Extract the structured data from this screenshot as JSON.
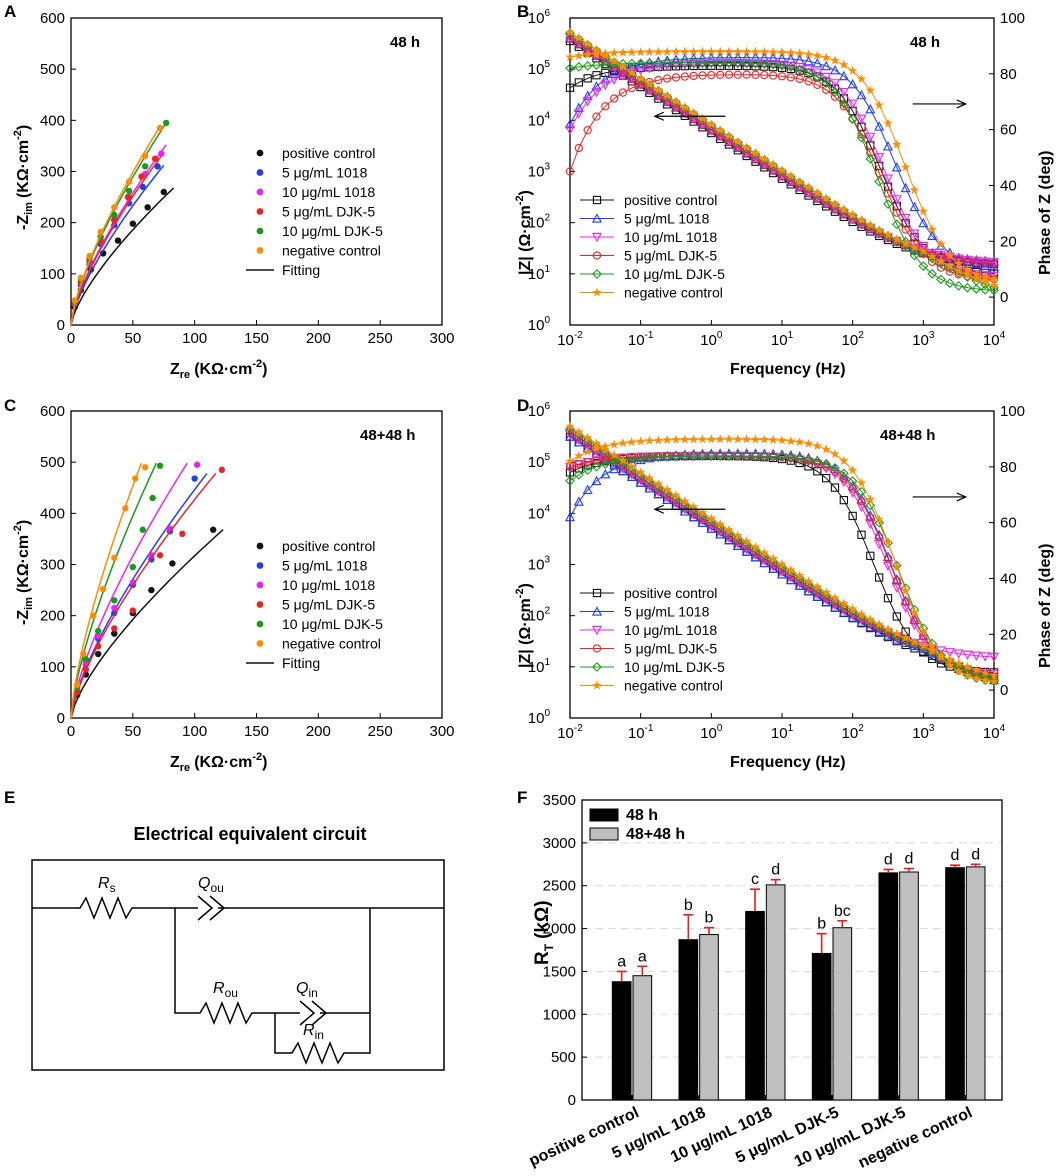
{
  "panels": {
    "A": "A",
    "B": "B",
    "C": "C",
    "D": "D",
    "E": "E",
    "F": "F"
  },
  "colors": {
    "positive_control": "#111111",
    "ug5_1018": "#1f3cff",
    "ug10_1018": "#ee22ee",
    "ug5_djk5": "#ee2222",
    "ug10_djk5": "#1a9a1a",
    "negative_control": "#ff8c00",
    "fitting": "#111111",
    "bar_48h": "#000000",
    "bar_4848h": "#bfbfbf",
    "error": "#e32020"
  },
  "chart_data": [
    {
      "id": "A",
      "type": "scatter",
      "annotation": "48 h",
      "xlabel_main": "Z",
      "xlabel_sub": "re",
      "xlabel_unit": "(KΩ·cm",
      "ylabel_main": "-Z",
      "ylabel_sub": "im",
      "ylabel_unit": "(KΩ·cm",
      "unit_exp": "-2",
      "unit_close": ")",
      "xlim": [
        0,
        300
      ],
      "ylim": [
        0,
        600
      ],
      "xticks": [
        "0",
        "50",
        "100",
        "150",
        "200",
        "250",
        "300"
      ],
      "yticks": [
        "0",
        "100",
        "200",
        "300",
        "400",
        "500",
        "600"
      ],
      "legend": [
        "positive control",
        "5 μg/mL 1018",
        "10 μg/mL 1018",
        "5 μg/mL DJK-5",
        "10 μg/mL DJK-5",
        "negative control",
        "Fitting"
      ],
      "series": [
        {
          "name": "positive control",
          "color": "positive_control",
          "x": [
            3,
            8,
            16,
            26,
            38,
            50,
            62,
            75
          ],
          "y": [
            35,
            68,
            108,
            140,
            165,
            198,
            230,
            260
          ],
          "fit_end": [
            83,
            268
          ]
        },
        {
          "name": "5 μg/mL 1018",
          "color": "ug5_1018",
          "x": [
            3,
            8,
            15,
            24,
            35,
            47,
            58,
            70
          ],
          "y": [
            40,
            78,
            118,
            158,
            195,
            238,
            270,
            310
          ],
          "fit_end": [
            75,
            312
          ]
        },
        {
          "name": "10 μg/mL 1018",
          "color": "ug10_1018",
          "x": [
            3,
            8,
            15,
            24,
            35,
            47,
            60,
            73
          ],
          "y": [
            42,
            82,
            122,
            165,
            205,
            250,
            295,
            335
          ],
          "fit_end": [
            77,
            352
          ]
        },
        {
          "name": "5 μg/mL DJK-5",
          "color": "ug5_djk5",
          "x": [
            3,
            8,
            15,
            24,
            35,
            46,
            57,
            68
          ],
          "y": [
            42,
            83,
            125,
            165,
            205,
            250,
            290,
            325
          ],
          "fit_end": [
            73,
            330
          ]
        },
        {
          "name": "10 μg/mL DJK-5",
          "color": "ug10_djk5",
          "x": [
            3,
            8,
            15,
            24,
            35,
            47,
            60,
            77
          ],
          "y": [
            45,
            88,
            130,
            172,
            215,
            262,
            310,
            395
          ],
          "fit_end": [
            77,
            395
          ]
        },
        {
          "name": "negative control",
          "color": "negative_control",
          "x": [
            3,
            8,
            15,
            24,
            35,
            47,
            60,
            72
          ],
          "y": [
            48,
            92,
            135,
            182,
            230,
            280,
            330,
            385
          ],
          "fit_end": [
            72,
            388
          ]
        }
      ]
    },
    {
      "id": "B",
      "type": "line",
      "annotation": "48 h",
      "xlabel": "Frequency (Hz)",
      "ylabel_left": "|Z| (Ω·cm",
      "ylabel_left_exp": "-2",
      "ylabel_left_close": ")",
      "ylabel_right": "Phase of Z (deg)",
      "xlim_log10": [
        -2,
        4
      ],
      "ylim_left_log10": [
        0,
        6
      ],
      "ylim_right": [
        -10,
        100
      ],
      "xticks": [
        "10",
        "10",
        "10",
        "10",
        "10",
        "10",
        "10"
      ],
      "xtick_exps": [
        "-2",
        "-1",
        "0",
        "1",
        "2",
        "3",
        "4"
      ],
      "yticks_left": [
        "10",
        "10",
        "10",
        "10",
        "10",
        "10",
        "10"
      ],
      "ytick_left_exps": [
        "0",
        "1",
        "2",
        "3",
        "4",
        "5",
        "6"
      ],
      "yticks_right": [
        "0",
        "20",
        "40",
        "60",
        "80",
        "100"
      ],
      "legend": [
        "positive control",
        "5 μg/mL 1018",
        "10 μg/mL 1018",
        "5 μg/mL DJK-5",
        "10 μg/mL DJK-5",
        "negative control"
      ],
      "markers": [
        "square",
        "triangle-up",
        "triangle-down",
        "circle",
        "diamond",
        "star"
      ],
      "series_colors": [
        "positive_control",
        "ug5_1018",
        "ug10_1018",
        "ug5_djk5",
        "ug10_djk5",
        "negative_control"
      ],
      "impedance": {
        "logZ_at_lowest_freq": [
          5.55,
          5.6,
          5.62,
          5.6,
          5.7,
          5.72
        ],
        "slope": -0.9,
        "logZ_plateau": [
          1.15,
          1.2,
          1.18,
          1.15,
          1.0,
          1.05
        ],
        "logZ_end": [
          1.15,
          1.2,
          1.18,
          1.15,
          0.65,
          0.7
        ]
      },
      "phase": {
        "start": [
          75,
          62,
          60,
          45,
          82,
          86
        ],
        "plateau": [
          83,
          86,
          84,
          80,
          84,
          88
        ],
        "corner_log10": [
          2.4,
          2.6,
          2.45,
          2.4,
          2.35,
          2.75
        ],
        "end": [
          8,
          10,
          7,
          6,
          2,
          5
        ]
      },
      "arrow_left_label": "",
      "arrow_right_label": ""
    },
    {
      "id": "C",
      "type": "scatter",
      "annotation": "48+48 h",
      "xlabel_main": "Z",
      "xlabel_sub": "re",
      "xlabel_unit": "(KΩ·cm",
      "ylabel_main": "-Z",
      "ylabel_sub": "im",
      "ylabel_unit": "(KΩ·cm",
      "unit_exp": "-2",
      "unit_close": ")",
      "xlim": [
        0,
        300
      ],
      "ylim": [
        0,
        600
      ],
      "xticks": [
        "0",
        "50",
        "100",
        "150",
        "200",
        "250",
        "300"
      ],
      "yticks": [
        "0",
        "100",
        "200",
        "300",
        "400",
        "500",
        "600"
      ],
      "legend": [
        "positive control",
        "5 μg/mL 1018",
        "10 μg/mL 1018",
        "5 μg/mL DJK-5",
        "10 μg/mL DJK-5",
        "negative control",
        "Fitting"
      ],
      "series": [
        {
          "name": "positive control",
          "color": "positive_control",
          "x": [
            5,
            12,
            22,
            35,
            50,
            65,
            82,
            115
          ],
          "y": [
            45,
            85,
            125,
            165,
            205,
            250,
            302,
            368
          ],
          "fit_end": [
            123,
            368
          ]
        },
        {
          "name": "5 μg/mL 1018",
          "color": "ug5_1018",
          "x": [
            5,
            12,
            22,
            35,
            50,
            65,
            80,
            100
          ],
          "y": [
            55,
            105,
            155,
            205,
            260,
            310,
            365,
            468
          ],
          "fit_end": [
            110,
            478
          ]
        },
        {
          "name": "10 μg/mL 1018",
          "color": "ug10_1018",
          "x": [
            5,
            12,
            22,
            35,
            50,
            65,
            80,
            102
          ],
          "y": [
            55,
            108,
            160,
            215,
            265,
            318,
            370,
            495
          ],
          "fit_end": [
            94,
            498
          ]
        },
        {
          "name": "5 μg/mL DJK-5",
          "color": "ug5_djk5",
          "x": [
            5,
            12,
            22,
            35,
            50,
            72,
            90,
            122
          ],
          "y": [
            50,
            95,
            140,
            175,
            210,
            318,
            360,
            485
          ],
          "fit_end": [
            117,
            478
          ]
        },
        {
          "name": "10 μg/mL DJK-5",
          "color": "ug10_djk5",
          "x": [
            5,
            12,
            22,
            35,
            50,
            58,
            66,
            72
          ],
          "y": [
            60,
            115,
            170,
            230,
            295,
            368,
            430,
            493
          ],
          "fit_end": [
            69,
            498
          ]
        },
        {
          "name": "negative control",
          "color": "negative_control",
          "x": [
            5,
            10,
            18,
            26,
            35,
            44,
            52,
            60
          ],
          "y": [
            65,
            125,
            200,
            252,
            313,
            410,
            468,
            490
          ],
          "fit_end": [
            57,
            498
          ]
        }
      ]
    },
    {
      "id": "D",
      "type": "line",
      "annotation": "48+48 h",
      "xlabel": "Frequency (Hz)",
      "ylabel_left": "|Z| (Ω·cm",
      "ylabel_left_exp": "-2",
      "ylabel_left_close": ")",
      "ylabel_right": "Phase of Z (deg)",
      "xlim_log10": [
        -2,
        4
      ],
      "ylim_left_log10": [
        0,
        6
      ],
      "ylim_right": [
        -10,
        100
      ],
      "xticks": [
        "10",
        "10",
        "10",
        "10",
        "10",
        "10",
        "10"
      ],
      "xtick_exps": [
        "-2",
        "-1",
        "0",
        "1",
        "2",
        "3",
        "4"
      ],
      "yticks_left": [
        "10",
        "10",
        "10",
        "10",
        "10",
        "10",
        "10"
      ],
      "ytick_left_exps": [
        "0",
        "1",
        "2",
        "3",
        "4",
        "5",
        "6"
      ],
      "yticks_right": [
        "0",
        "20",
        "40",
        "60",
        "80",
        "100"
      ],
      "legend": [
        "positive control",
        "5 μg/mL 1018",
        "10 μg/mL 1018",
        "5 μg/mL DJK-5",
        "10 μg/mL DJK-5",
        "negative control"
      ],
      "markers": [
        "square",
        "triangle-up",
        "triangle-down",
        "circle",
        "diamond",
        "star"
      ],
      "series_colors": [
        "positive_control",
        "ug5_1018",
        "ug10_1018",
        "ug5_djk5",
        "ug10_djk5",
        "negative_control"
      ],
      "impedance": {
        "logZ_at_lowest_freq": [
          5.5,
          5.5,
          5.55,
          5.6,
          5.65,
          5.7
        ],
        "slope": -0.9,
        "logZ_plateau": [
          1.0,
          1.1,
          1.15,
          1.05,
          1.0,
          1.0
        ],
        "logZ_end": [
          0.75,
          0.7,
          1.15,
          0.7,
          0.7,
          0.75
        ]
      },
      "phase": {
        "start": [
          78,
          62,
          80,
          80,
          75,
          82
        ],
        "plateau": [
          84,
          85,
          84,
          84,
          84,
          90
        ],
        "corner_log10": [
          2.3,
          2.55,
          2.5,
          2.55,
          2.65,
          2.6
        ],
        "end": [
          6,
          4,
          5,
          4,
          2,
          2
        ]
      }
    },
    {
      "id": "F",
      "type": "bar",
      "ylabel_main": "R",
      "ylabel_sub": "T",
      "ylabel_unit": "(kΩ)",
      "ylim": [
        0,
        3500
      ],
      "yticks": [
        "0",
        "500",
        "1000",
        "1500",
        "2000",
        "2500",
        "3000",
        "3500"
      ],
      "categories": [
        "positive control",
        "5 μg/mL 1018",
        "10 μg/mL 1018",
        "5 μg/mL DJK-5",
        "10 μg/mL DJK-5",
        "negative control"
      ],
      "series": [
        {
          "name": "48 h",
          "values": [
            1380,
            1870,
            2200,
            1710,
            2650,
            2710
          ],
          "errors": [
            120,
            290,
            260,
            230,
            40,
            30
          ],
          "labels": [
            "a",
            "b",
            "c",
            "b",
            "d",
            "d"
          ]
        },
        {
          "name": "48+48 h",
          "values": [
            1450,
            1930,
            2510,
            2010,
            2660,
            2720
          ],
          "errors": [
            110,
            80,
            60,
            80,
            40,
            30
          ],
          "labels": [
            "a",
            "b",
            "d",
            "bc",
            "d",
            "d"
          ]
        }
      ],
      "legend": [
        "48 h",
        "48+48 h"
      ]
    }
  ],
  "circuit": {
    "title": "Electrical equivalent circuit",
    "rs": "R",
    "rs_sub": "s",
    "qou": "Q",
    "qou_sub": "ou",
    "rou": "R",
    "rou_sub": "ou",
    "qin": "Q",
    "qin_sub": "in",
    "rin": "R",
    "rin_sub": "in"
  }
}
